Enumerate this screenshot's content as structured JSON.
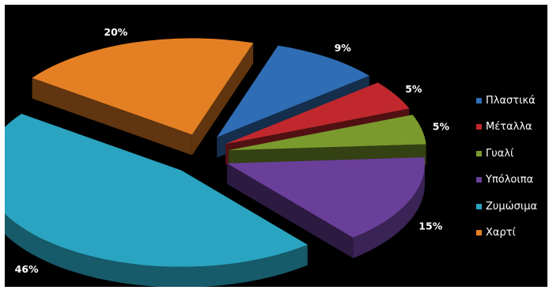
{
  "chart_data": {
    "type": "pie",
    "style": "3d-exploded",
    "title": "",
    "legend_position": "right",
    "slices": [
      {
        "label": "Πλαστικά",
        "value": 9,
        "display": "9%",
        "color": "#2f6db5"
      },
      {
        "label": "Μέταλλα",
        "value": 5,
        "display": "5%",
        "color": "#c0282d"
      },
      {
        "label": "Γυαλί",
        "value": 5,
        "display": "5%",
        "color": "#7a9a2e"
      },
      {
        "label": "Υπόλοιπα",
        "value": 15,
        "display": "15%",
        "color": "#6a3f9a"
      },
      {
        "label": "Ζυμώσιμα",
        "value": 46,
        "display": "46%",
        "color": "#2aa4c0"
      },
      {
        "label": "Χαρτί",
        "value": 20,
        "display": "20%",
        "color": "#e57f24"
      }
    ]
  }
}
